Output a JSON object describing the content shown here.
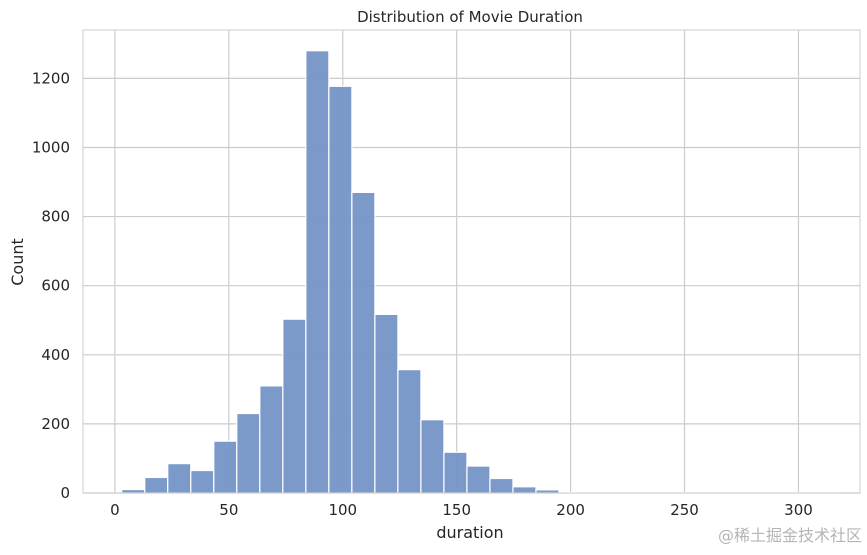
{
  "chart_data": {
    "type": "bar",
    "title": "Distribution of Movie Duration",
    "xlabel": "duration",
    "ylabel": "Count",
    "xlim": [
      -14,
      327
    ],
    "ylim": [
      0,
      1340
    ],
    "grid": true,
    "xticks": [
      0,
      50,
      100,
      150,
      200,
      250,
      300
    ],
    "yticks": [
      0,
      200,
      400,
      600,
      800,
      1000,
      1200
    ],
    "bin_width": 10.1,
    "bins": [
      {
        "x0": 3,
        "count": 10
      },
      {
        "x0": 13.1,
        "count": 45
      },
      {
        "x0": 23.2,
        "count": 85
      },
      {
        "x0": 33.3,
        "count": 65
      },
      {
        "x0": 43.4,
        "count": 150
      },
      {
        "x0": 53.5,
        "count": 230
      },
      {
        "x0": 63.6,
        "count": 310
      },
      {
        "x0": 73.7,
        "count": 503
      },
      {
        "x0": 83.8,
        "count": 1280
      },
      {
        "x0": 93.9,
        "count": 1177
      },
      {
        "x0": 104.0,
        "count": 870
      },
      {
        "x0": 114.1,
        "count": 517
      },
      {
        "x0": 124.2,
        "count": 357
      },
      {
        "x0": 134.3,
        "count": 212
      },
      {
        "x0": 144.4,
        "count": 118
      },
      {
        "x0": 154.5,
        "count": 78
      },
      {
        "x0": 164.6,
        "count": 42
      },
      {
        "x0": 174.7,
        "count": 18
      },
      {
        "x0": 184.8,
        "count": 9
      },
      {
        "x0": 194.9,
        "count": 2
      },
      {
        "x0": 205.0,
        "count": 1
      },
      {
        "x0": 215.1,
        "count": 1
      },
      {
        "x0": 225.2,
        "count": 1
      },
      {
        "x0": 235.3,
        "count": 1
      },
      {
        "x0": 245.4,
        "count": 1
      },
      {
        "x0": 255.5,
        "count": 1
      },
      {
        "x0": 265.6,
        "count": 1
      },
      {
        "x0": 275.7,
        "count": 1
      },
      {
        "x0": 285.8,
        "count": 1
      },
      {
        "x0": 295.9,
        "count": 1
      },
      {
        "x0": 306.0,
        "count": 1
      }
    ],
    "colors": {
      "bar": "#7493c6",
      "bar_edge": "#ffffff",
      "grid": "#cccccc",
      "frame": "#cccccc"
    }
  },
  "watermark": "@稀土掘金技术社区"
}
